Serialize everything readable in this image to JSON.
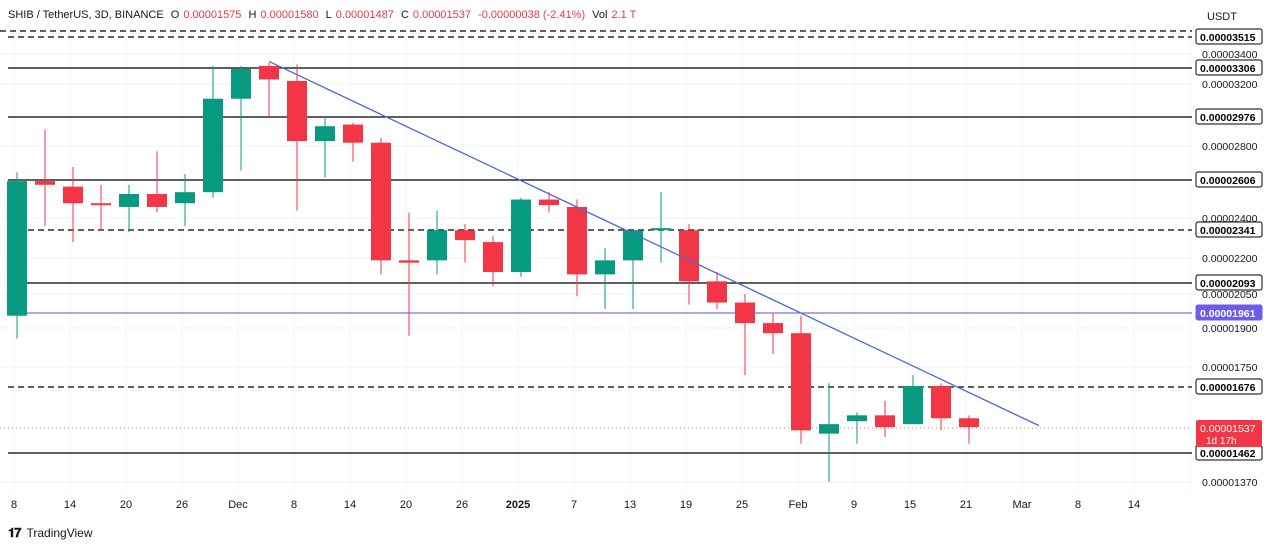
{
  "header": {
    "symbol": "SHIB / TetherUS, 3D, BINANCE",
    "open_label": "O",
    "open_value": "0.00001575",
    "high_label": "H",
    "high_value": "0.00001580",
    "low_label": "L",
    "low_value": "0.00001487",
    "close_label": "C",
    "close_value": "0.00001537",
    "change": "-0.00000038 (-2.41%)",
    "volume_label": "Vol",
    "volume_value": "2.1 T"
  },
  "axis_unit": "USDT",
  "brand": "TradingView",
  "colors": {
    "up": "#089981",
    "down": "#f23645",
    "trendline": "#4a6bd1",
    "purple_line": "#5b4fd6",
    "purple_label": "#6c5ce7",
    "level_line": "#000000",
    "grid": "#f0f3fa"
  },
  "chart_data": {
    "type": "candlestick",
    "timeframe": "3D",
    "y_axis": {
      "range": [
        1.36e-05,
        3.6e-05
      ],
      "ticks": [
        "0.00001370",
        "0.00001750",
        "0.00001900",
        "0.00002050",
        "0.00002200",
        "0.00002400",
        "0.00002800",
        "0.00003200",
        "0.00003400"
      ],
      "tick_values": [
        1.37e-05,
        1.75e-05,
        1.9e-05,
        2.05e-05,
        2.2e-05,
        2.4e-05,
        2.8e-05,
        3.2e-05,
        3.4e-05
      ]
    },
    "x_axis": {
      "ticks": [
        "8",
        "14",
        "20",
        "26",
        "Dec",
        "8",
        "14",
        "20",
        "26",
        "2025",
        "7",
        "13",
        "19",
        "25",
        "Feb",
        "9",
        "15",
        "21",
        "Mar",
        "8",
        "14"
      ],
      "bold": [
        "2025"
      ]
    },
    "candles": [
      {
        "o": 1.95e-05,
        "h": 2.65e-05,
        "l": 1.86e-05,
        "c": 2.6e-05
      },
      {
        "o": 2.6e-05,
        "h": 2.9e-05,
        "l": 2.36e-05,
        "c": 2.58e-05
      },
      {
        "o": 2.57e-05,
        "h": 2.68e-05,
        "l": 2.28e-05,
        "c": 2.48e-05
      },
      {
        "o": 2.48e-05,
        "h": 2.58e-05,
        "l": 2.34e-05,
        "c": 2.47e-05
      },
      {
        "o": 2.46e-05,
        "h": 2.58e-05,
        "l": 2.33e-05,
        "c": 2.53e-05
      },
      {
        "o": 2.53e-05,
        "h": 2.77e-05,
        "l": 2.43e-05,
        "c": 2.46e-05
      },
      {
        "o": 2.48e-05,
        "h": 2.64e-05,
        "l": 2.36e-05,
        "c": 2.54e-05
      },
      {
        "o": 2.54e-05,
        "h": 3.32e-05,
        "l": 2.51e-05,
        "c": 3.1e-05
      },
      {
        "o": 3.1e-05,
        "h": 3.32e-05,
        "l": 2.66e-05,
        "c": 3.3e-05
      },
      {
        "o": 3.32e-05,
        "h": 3.34e-05,
        "l": 2.98e-05,
        "c": 3.23e-05
      },
      {
        "o": 3.22e-05,
        "h": 3.33e-05,
        "l": 2.44e-05,
        "c": 2.83e-05
      },
      {
        "o": 2.83e-05,
        "h": 2.98e-05,
        "l": 2.62e-05,
        "c": 2.92e-05
      },
      {
        "o": 2.93e-05,
        "h": 2.94e-05,
        "l": 2.71e-05,
        "c": 2.82e-05
      },
      {
        "o": 2.82e-05,
        "h": 2.85e-05,
        "l": 2.13e-05,
        "c": 2.19e-05
      },
      {
        "o": 2.19e-05,
        "h": 2.43e-05,
        "l": 1.87e-05,
        "c": 2.18e-05
      },
      {
        "o": 2.19e-05,
        "h": 2.44e-05,
        "l": 2.13e-05,
        "c": 2.34e-05
      },
      {
        "o": 2.34e-05,
        "h": 2.37e-05,
        "l": 2.18e-05,
        "c": 2.29e-05
      },
      {
        "o": 2.28e-05,
        "h": 2.31e-05,
        "l": 2.08e-05,
        "c": 2.14e-05
      },
      {
        "o": 2.14e-05,
        "h": 2.51e-05,
        "l": 2.12e-05,
        "c": 2.5e-05
      },
      {
        "o": 2.5e-05,
        "h": 2.54e-05,
        "l": 2.43e-05,
        "c": 2.47e-05
      },
      {
        "o": 2.46e-05,
        "h": 2.5e-05,
        "l": 2.04e-05,
        "c": 2.13e-05
      },
      {
        "o": 2.13e-05,
        "h": 2.25e-05,
        "l": 1.98e-05,
        "c": 2.19e-05
      },
      {
        "o": 2.19e-05,
        "h": 2.34e-05,
        "l": 1.98e-05,
        "c": 2.34e-05
      },
      {
        "o": 2.34e-05,
        "h": 2.54e-05,
        "l": 2.18e-05,
        "c": 2.35e-05
      },
      {
        "o": 2.34e-05,
        "h": 2.37e-05,
        "l": 2e-05,
        "c": 2.1e-05
      },
      {
        "o": 2.1e-05,
        "h": 2.14e-05,
        "l": 1.98e-05,
        "c": 2.01e-05
      },
      {
        "o": 2.01e-05,
        "h": 2.05e-05,
        "l": 1.72e-05,
        "c": 1.92e-05
      },
      {
        "o": 1.92e-05,
        "h": 1.96e-05,
        "l": 1.8e-05,
        "c": 1.88e-05
      },
      {
        "o": 1.88e-05,
        "h": 1.95e-05,
        "l": 1.49e-05,
        "c": 1.53e-05
      },
      {
        "o": 1.52e-05,
        "h": 1.69e-05,
        "l": 1.37e-05,
        "c": 1.55e-05
      },
      {
        "o": 1.56e-05,
        "h": 1.59e-05,
        "l": 1.49e-05,
        "c": 1.58e-05
      },
      {
        "o": 1.58e-05,
        "h": 1.63e-05,
        "l": 1.51e-05,
        "c": 1.54e-05
      },
      {
        "o": 1.55e-05,
        "h": 1.72e-05,
        "l": 1.55e-05,
        "c": 1.68e-05
      },
      {
        "o": 1.68e-05,
        "h": 1.69e-05,
        "l": 1.53e-05,
        "c": 1.57e-05
      },
      {
        "o": 1.57e-05,
        "h": 1.58e-05,
        "l": 1.49e-05,
        "c": 1.54e-05
      }
    ],
    "horizontal_levels": [
      {
        "value": 3.515e-05,
        "label": "0.00003515",
        "style": "dashed"
      },
      {
        "value": 3.306e-05,
        "label": "0.00003306",
        "style": "solid"
      },
      {
        "value": 2.976e-05,
        "label": "0.00002976",
        "style": "solid"
      },
      {
        "value": 2.606e-05,
        "label": "0.00002606",
        "style": "solid"
      },
      {
        "value": 2.341e-05,
        "label": "0.00002341",
        "style": "dashed"
      },
      {
        "value": 2.093e-05,
        "label": "0.00002093",
        "style": "solid"
      },
      {
        "value": 1.961e-05,
        "label": "0.00001961",
        "style": "purple"
      },
      {
        "value": 1.676e-05,
        "label": "0.00001676",
        "style": "dashed"
      },
      {
        "value": 1.462e-05,
        "label": "0.00001462",
        "style": "solid"
      }
    ],
    "extra_level": 3.6e-05,
    "trendline": {
      "from": {
        "candle": 9,
        "value": 3.35e-05
      },
      "to": {
        "candle": 36.5,
        "value": 1.545e-05
      }
    },
    "current_price": {
      "value": 1.537e-05,
      "label": "0.00001537",
      "countdown": "1d 17h"
    }
  }
}
